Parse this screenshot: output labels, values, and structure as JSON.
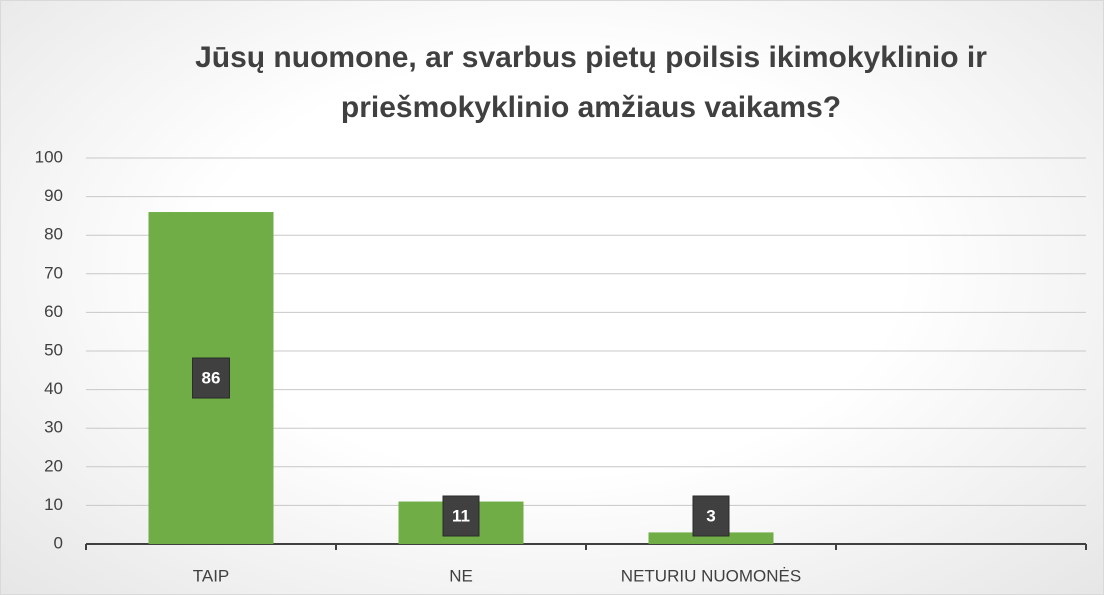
{
  "chart_data": {
    "type": "bar",
    "title": "Jūsų nuomone, ar svarbus pietų poilsis ikimokyklinio ir priešmokyklinio amžiaus vaikams?",
    "categories": [
      "TAIP",
      "NE",
      "NETURIU NUOMONĖS",
      null
    ],
    "values": [
      86,
      11,
      3,
      null
    ],
    "color": "#70ad47",
    "ylim": [
      0,
      100
    ],
    "yticks": [
      0,
      10,
      20,
      30,
      40,
      50,
      60,
      70,
      80,
      90,
      100
    ],
    "grid": true
  }
}
